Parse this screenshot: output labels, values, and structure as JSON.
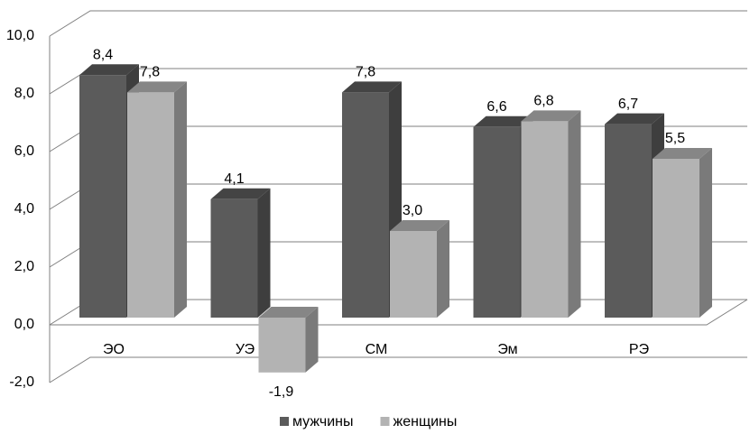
{
  "chart_data": {
    "type": "bar",
    "categories": [
      "ЭО",
      "УЭ",
      "СМ",
      "Эм",
      "РЭ"
    ],
    "series": [
      {
        "name": "мужчины",
        "color": "#5b5b5b",
        "values": [
          8.4,
          4.1,
          7.8,
          6.6,
          6.7
        ],
        "value_labels": [
          "8,4",
          "4,1",
          "7,8",
          "6,6",
          "6,7"
        ]
      },
      {
        "name": "женщины",
        "color": "#b3b3b3",
        "values": [
          7.8,
          -1.9,
          3.0,
          6.8,
          5.5
        ],
        "value_labels": [
          "7,8",
          "-1,9",
          "3,0",
          "6,8",
          "5,5"
        ]
      }
    ],
    "ylim": [
      -2,
      10
    ],
    "yticks": [
      {
        "value": -2,
        "label": "-2,0"
      },
      {
        "value": 0,
        "label": "0,0"
      },
      {
        "value": 2,
        "label": "2,0"
      },
      {
        "value": 4,
        "label": "4,0"
      },
      {
        "value": 6,
        "label": "6,0"
      },
      {
        "value": 8,
        "label": "8,0"
      },
      {
        "value": 10,
        "label": "10,0"
      }
    ],
    "grid": true,
    "legend": "bottom"
  }
}
